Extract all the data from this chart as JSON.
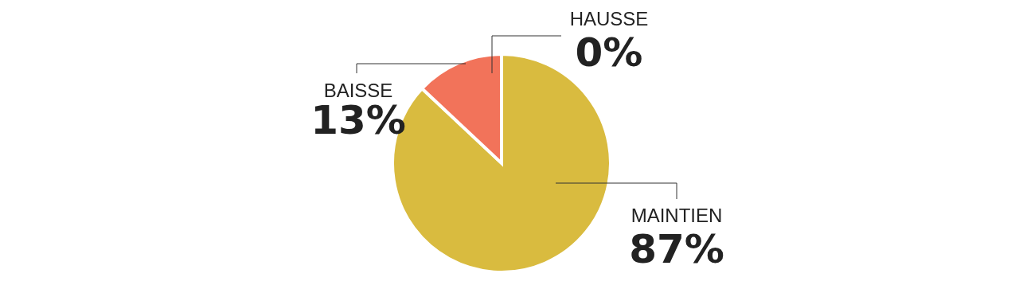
{
  "chart_data": {
    "type": "pie",
    "categories": [
      "MAINTIEN",
      "BAISSE",
      "HAUSSE"
    ],
    "values": [
      87,
      13,
      0
    ],
    "value_labels": [
      "87%",
      "13%",
      "0%"
    ],
    "colors": [
      "#d9bb3f",
      "#f2735a",
      "#e8a33a"
    ]
  }
}
